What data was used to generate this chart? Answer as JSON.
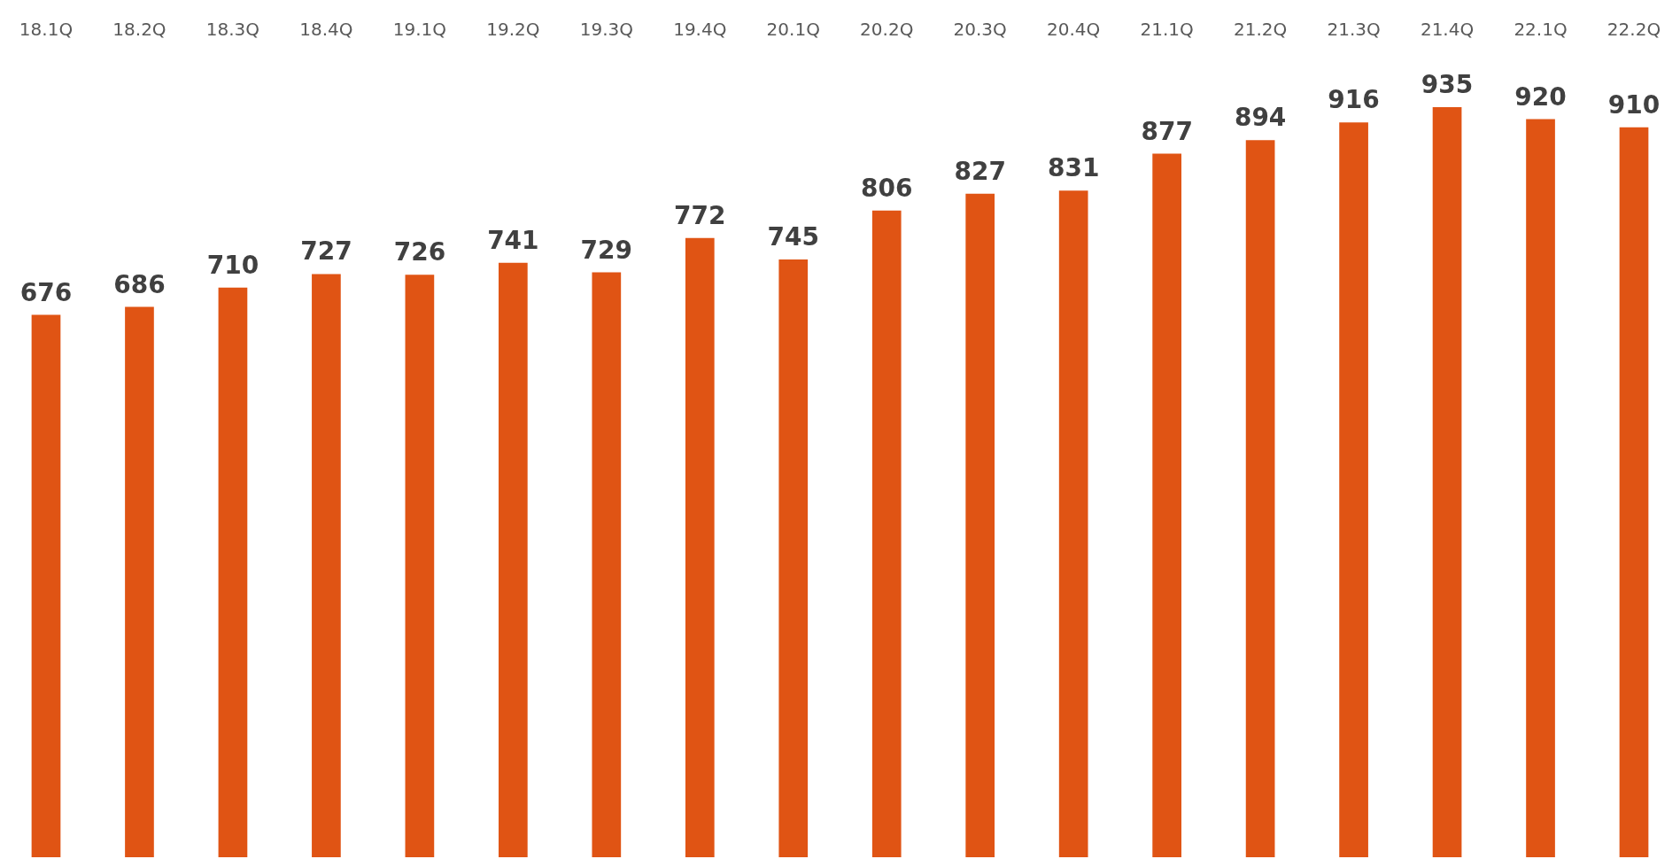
{
  "chart_data": {
    "type": "bar",
    "categories": [
      "18.1Q",
      "18.2Q",
      "18.3Q",
      "18.4Q",
      "19.1Q",
      "19.2Q",
      "19.3Q",
      "19.4Q",
      "20.1Q",
      "20.2Q",
      "20.3Q",
      "20.4Q",
      "21.1Q",
      "21.2Q",
      "21.3Q",
      "21.4Q",
      "22.1Q",
      "22.2Q"
    ],
    "values": [
      676,
      686,
      710,
      727,
      726,
      741,
      729,
      772,
      745,
      806,
      827,
      831,
      877,
      894,
      916,
      935,
      920,
      910
    ],
    "color": "#e05414",
    "data_labels": true
  }
}
